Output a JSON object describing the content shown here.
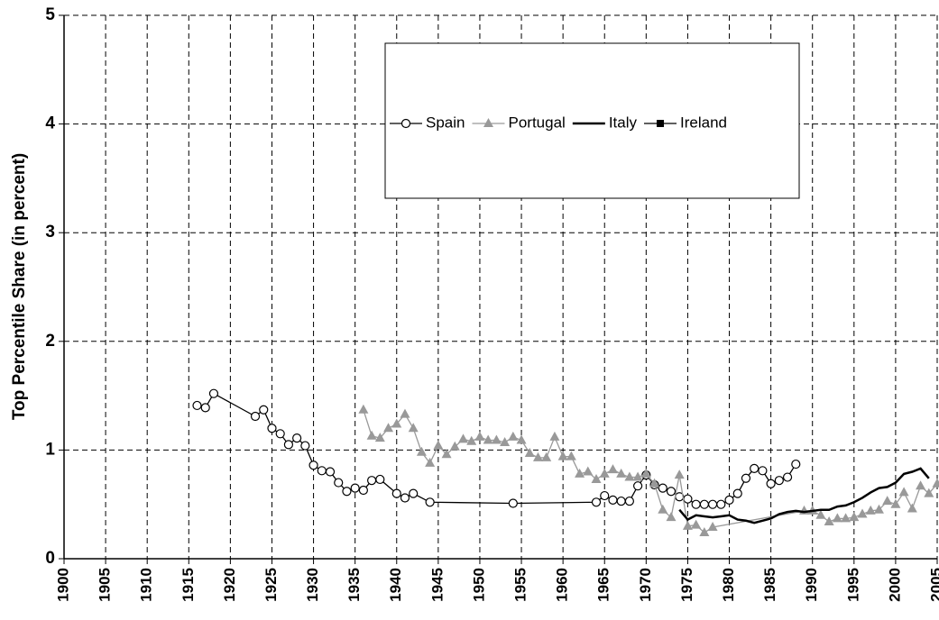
{
  "chart_data": {
    "type": "line",
    "y_label": "Top Percentile Share (in percent)",
    "xlim": [
      1900,
      2005
    ],
    "xticks": [
      1900,
      1905,
      1910,
      1915,
      1920,
      1925,
      1930,
      1935,
      1940,
      1945,
      1950,
      1955,
      1960,
      1965,
      1970,
      1975,
      1980,
      1985,
      1990,
      1995,
      2000,
      2005
    ],
    "ylim": [
      0,
      5
    ],
    "yticks": [
      0,
      1,
      2,
      3,
      4,
      5
    ],
    "grid": true,
    "legend": "top",
    "series": [
      {
        "name": "Spain",
        "color": "#000000",
        "marker": "circle",
        "x": [
          1916,
          1917,
          1918,
          1923,
          1924,
          1925,
          1926,
          1927,
          1928,
          1929,
          1930,
          1931,
          1932,
          1933,
          1934,
          1935,
          1936,
          1937,
          1938,
          1940,
          1941,
          1942,
          1944,
          1954,
          1964,
          1965,
          1966,
          1967,
          1968,
          1969,
          1970,
          1971,
          1972,
          1973,
          1974,
          1975,
          1976,
          1977,
          1978,
          1979,
          1980,
          1981,
          1982,
          1983,
          1984,
          1985,
          1986,
          1987,
          1988
        ],
        "values": [
          1.41,
          1.39,
          1.52,
          1.31,
          1.37,
          1.2,
          1.15,
          1.05,
          1.11,
          1.04,
          0.86,
          0.81,
          0.8,
          0.7,
          0.62,
          0.65,
          0.63,
          0.72,
          0.73,
          0.6,
          0.56,
          0.6,
          0.52,
          0.51,
          0.52,
          0.58,
          0.54,
          0.53,
          0.53,
          0.67,
          0.77,
          0.68,
          0.65,
          0.62,
          0.57,
          0.55,
          0.5,
          0.5,
          0.5,
          0.5,
          0.54,
          0.6,
          0.74,
          0.83,
          0.81,
          0.69,
          0.72,
          0.75,
          0.87
        ]
      },
      {
        "name": "Portugal",
        "color": "#999999",
        "marker": "triangle",
        "x": [
          1936,
          1937,
          1938,
          1939,
          1940,
          1941,
          1942,
          1943,
          1944,
          1945,
          1946,
          1947,
          1948,
          1949,
          1950,
          1951,
          1952,
          1953,
          1954,
          1955,
          1956,
          1957,
          1958,
          1959,
          1960,
          1961,
          1962,
          1963,
          1964,
          1965,
          1966,
          1967,
          1968,
          1969,
          1970,
          1971,
          1972,
          1973,
          1974,
          1975,
          1976,
          1977,
          1978,
          1989,
          1990,
          1991,
          1992,
          1993,
          1994,
          1995,
          1996,
          1997,
          1998,
          1999,
          2000,
          2001,
          2002,
          2003,
          2004,
          2005
        ],
        "values": [
          1.37,
          1.13,
          1.11,
          1.2,
          1.24,
          1.33,
          1.2,
          0.98,
          0.88,
          1.04,
          0.96,
          1.03,
          1.1,
          1.08,
          1.12,
          1.09,
          1.09,
          1.07,
          1.12,
          1.09,
          0.97,
          0.93,
          0.93,
          1.12,
          0.94,
          0.94,
          0.78,
          0.8,
          0.73,
          0.78,
          0.82,
          0.78,
          0.75,
          0.75,
          0.78,
          0.69,
          0.45,
          0.38,
          0.77,
          0.3,
          0.31,
          0.24,
          0.29,
          0.44,
          0.44,
          0.4,
          0.34,
          0.37,
          0.37,
          0.38,
          0.41,
          0.44,
          0.45,
          0.53,
          0.5,
          0.61,
          0.46,
          0.67,
          0.6,
          0.69
        ]
      },
      {
        "name": "Italy",
        "color": "#000000",
        "marker": "none",
        "x": [
          1974,
          1975,
          1976,
          1977,
          1978,
          1979,
          1980,
          1981,
          1982,
          1983,
          1984,
          1985,
          1986,
          1987,
          1988,
          1989,
          1990,
          1991,
          1992,
          1993,
          1994,
          1995,
          1996,
          1997,
          1998,
          1999,
          2000,
          2001,
          2002,
          2003,
          2004
        ],
        "values": [
          0.45,
          0.36,
          0.4,
          0.39,
          0.38,
          0.39,
          0.4,
          0.36,
          0.35,
          0.33,
          0.35,
          0.37,
          0.41,
          0.43,
          0.44,
          0.43,
          0.44,
          0.45,
          0.45,
          0.48,
          0.49,
          0.52,
          0.56,
          0.61,
          0.65,
          0.66,
          0.7,
          0.78,
          0.8,
          0.83,
          0.74
        ]
      },
      {
        "name": "Ireland",
        "color": "#000000",
        "marker": "square",
        "x": [],
        "values": []
      }
    ]
  }
}
